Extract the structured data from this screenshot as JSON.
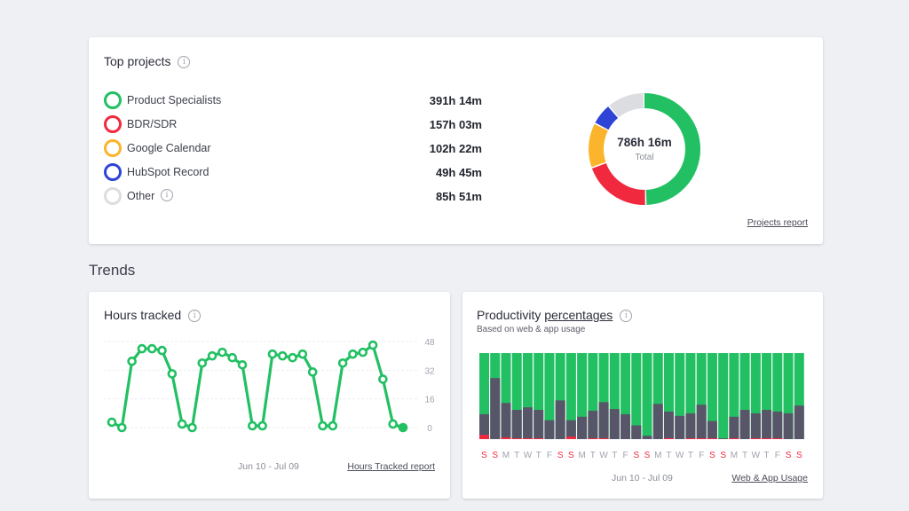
{
  "top_projects": {
    "title": "Top projects",
    "items": [
      {
        "name": "Product Specialists",
        "value": "391h 14m",
        "color": "#22c063",
        "hours": 391.23
      },
      {
        "name": "BDR/SDR",
        "value": "157h 03m",
        "color": "#f0293e",
        "hours": 157.05
      },
      {
        "name": "Google Calendar",
        "value": "102h 22m",
        "color": "#fbb42b",
        "hours": 102.37
      },
      {
        "name": "HubSpot Record",
        "value": "49h 45m",
        "color": "#2f44d6",
        "hours": 49.75
      },
      {
        "name": "Other",
        "value": "85h 51m",
        "color": "#dcdde1",
        "hours": 85.85
      }
    ],
    "total_value": "786h 16m",
    "total_label": "Total",
    "report_link": "Projects report"
  },
  "trends": {
    "title": "Trends"
  },
  "hours_tracked": {
    "title": "Hours tracked",
    "date_range": "Jun 10 - Jul 09",
    "report_link": "Hours Tracked report",
    "chart_data": {
      "type": "line",
      "yticks": [
        48,
        32,
        16,
        0
      ],
      "ylim": [
        0,
        48
      ],
      "color": "#22c063",
      "values": [
        3,
        0,
        37,
        44,
        44,
        43,
        30,
        2,
        0,
        36,
        40,
        42,
        39,
        35,
        1,
        1,
        41,
        40,
        39,
        41,
        31,
        1,
        1,
        36,
        41,
        42,
        46,
        27,
        2,
        0
      ]
    }
  },
  "productivity": {
    "title_prefix": "Productivity",
    "title_link": "percentages",
    "subtitle": "Based on web & app usage",
    "date_range": "Jun 10 - Jul 09",
    "report_link": "Web & App Usage",
    "chart_data": {
      "type": "bar",
      "stacked": true,
      "ylim": [
        0,
        100
      ],
      "colors": {
        "productive": "#22c063",
        "neutral": "#575669",
        "unproductive": "#f0293e"
      },
      "categories": [
        "S",
        "S",
        "M",
        "T",
        "W",
        "T",
        "F",
        "S",
        "S",
        "M",
        "T",
        "W",
        "T",
        "F",
        "S",
        "S",
        "M",
        "T",
        "W",
        "T",
        "F",
        "S",
        "S",
        "M",
        "T",
        "W",
        "T",
        "F",
        "S",
        "S"
      ],
      "weekend_color": "#f0293e",
      "weekday_color": "#a0a3ad",
      "unproductive": [
        5,
        0,
        2,
        1,
        1,
        1,
        0,
        0,
        3,
        0,
        1,
        1,
        0,
        0,
        0,
        0,
        0,
        1,
        0,
        1,
        1,
        1,
        0,
        1,
        0,
        1,
        1,
        1,
        0,
        0
      ],
      "neutral": [
        24,
        71,
        40,
        33,
        36,
        33,
        22,
        45,
        19,
        26,
        32,
        42,
        35,
        29,
        16,
        4,
        41,
        31,
        27,
        29,
        39,
        20,
        1,
        25,
        34,
        29,
        33,
        31,
        30,
        39
      ]
    }
  }
}
